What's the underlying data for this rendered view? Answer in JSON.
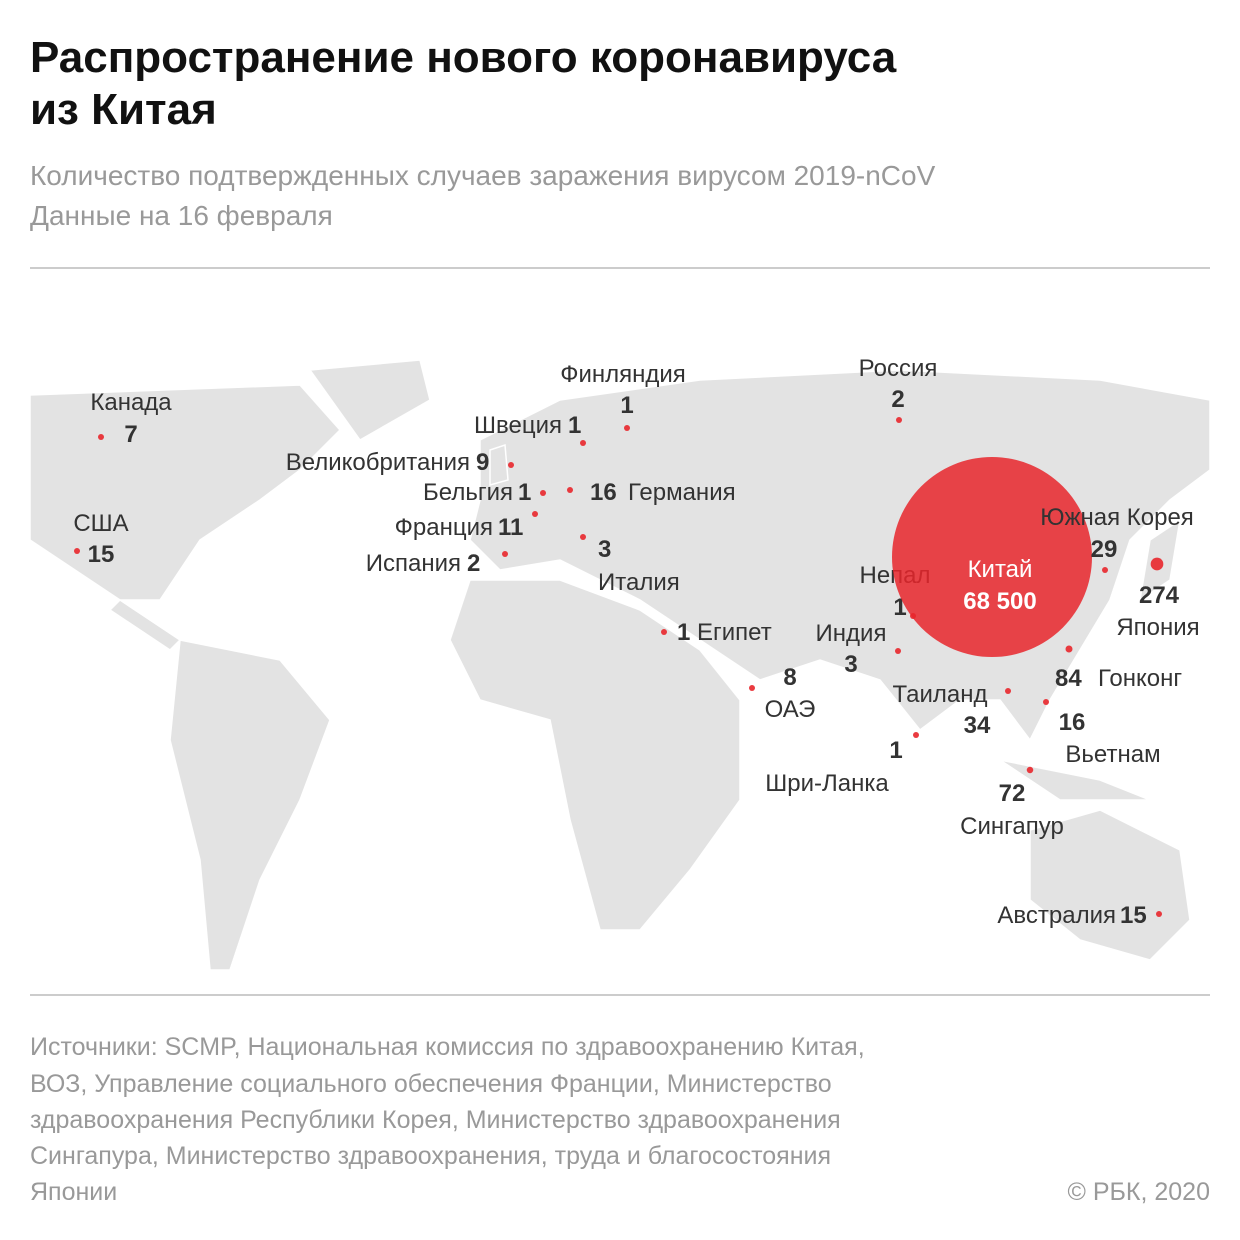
{
  "header": {
    "title": [
      "Распространение нового коронавируса",
      "из Китая"
    ],
    "subtitle": [
      "Количество подтвержденных случаев заражения вирусом 2019-nCoV",
      "Данные на 16 февраля"
    ]
  },
  "countries": [
    {
      "name": "Канада",
      "value": 7
    },
    {
      "name": "США",
      "value": 15
    },
    {
      "name": "Великобритания",
      "value": 9
    },
    {
      "name": "Швеция",
      "value": 1
    },
    {
      "name": "Финляндия",
      "value": 1
    },
    {
      "name": "Бельгия",
      "value": 1
    },
    {
      "name": "Германия",
      "value": 16
    },
    {
      "name": "Франция",
      "value": 11
    },
    {
      "name": "Испания",
      "value": 2
    },
    {
      "name": "Италия",
      "value": 3
    },
    {
      "name": "Египет",
      "value": 1
    },
    {
      "name": "ОАЭ",
      "value": 8
    },
    {
      "name": "Индия",
      "value": 3
    },
    {
      "name": "Непал",
      "value": 1
    },
    {
      "name": "Шри-Ланка",
      "value": 1
    },
    {
      "name": "Китай",
      "value": 68500,
      "value_label": "68 500"
    },
    {
      "name": "Южная Корея",
      "value": 29
    },
    {
      "name": "Япония",
      "value": 274
    },
    {
      "name": "Гонконг",
      "value": 84
    },
    {
      "name": "Таиланд",
      "value": 34
    },
    {
      "name": "Вьетнам",
      "value": 16
    },
    {
      "name": "Сингапур",
      "value": 72
    },
    {
      "name": "Россия",
      "value": 2
    },
    {
      "name": "Австралия",
      "value": 15
    }
  ],
  "footer": {
    "sources": [
      "Источники: SCMP, Национальная комиссия по здравоохранению Китая,",
      "ВОЗ, Управление социального обеспечения Франции, Министерство",
      "здравоохранения Республики Корея, Министерство здравоохранения",
      "Сингапура, Министерство здравоохранения, труда и благосостояния",
      "Японии"
    ],
    "copyright": "© РБК, 2020"
  }
}
